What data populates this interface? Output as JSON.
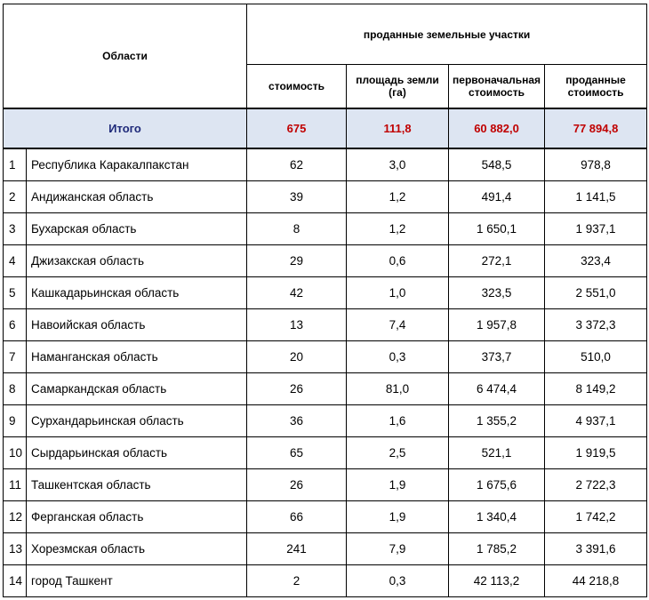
{
  "header": {
    "region_label": "Области",
    "group_label": "проданные земельные участки",
    "col_count": "стоимость",
    "col_area": "площадь земли (га)",
    "col_initial": "первоначальная стоимость",
    "col_sold": "проданные стоимость"
  },
  "total": {
    "label": "Итого",
    "count": "675",
    "area": "111,8",
    "initial": "60 882,0",
    "sold": "77 894,8"
  },
  "colors": {
    "total_bg": "#dde5f2",
    "total_label": "#1f2a7a",
    "total_values": "#c00000"
  },
  "rows": [
    {
      "n": "1",
      "region": "Республика Каракалпакстан",
      "count": "62",
      "area": "3,0",
      "initial": "548,5",
      "sold": "978,8"
    },
    {
      "n": "2",
      "region": "Андижанская область",
      "count": "39",
      "area": "1,2",
      "initial": "491,4",
      "sold": "1 141,5"
    },
    {
      "n": "3",
      "region": "Бухарская область",
      "count": "8",
      "area": "1,2",
      "initial": "1 650,1",
      "sold": "1 937,1"
    },
    {
      "n": "4",
      "region": "Джизакская область",
      "count": "29",
      "area": "0,6",
      "initial": "272,1",
      "sold": "323,4"
    },
    {
      "n": "5",
      "region": "Кашкадарьинская область",
      "count": "42",
      "area": "1,0",
      "initial": "323,5",
      "sold": "2 551,0"
    },
    {
      "n": "6",
      "region": "Навоийская область",
      "count": "13",
      "area": "7,4",
      "initial": "1 957,8",
      "sold": "3 372,3"
    },
    {
      "n": "7",
      "region": "Наманганская область",
      "count": "20",
      "area": "0,3",
      "initial": "373,7",
      "sold": "510,0"
    },
    {
      "n": "8",
      "region": "Самаркандская область",
      "count": "26",
      "area": "81,0",
      "initial": "6 474,4",
      "sold": "8 149,2"
    },
    {
      "n": "9",
      "region": "Сурхандарьинская область",
      "count": "36",
      "area": "1,6",
      "initial": "1 355,2",
      "sold": "4 937,1"
    },
    {
      "n": "10",
      "region": "Сырдарьинская область",
      "count": "65",
      "area": "2,5",
      "initial": "521,1",
      "sold": "1 919,5"
    },
    {
      "n": "11",
      "region": "Ташкентская область",
      "count": "26",
      "area": "1,9",
      "initial": "1 675,6",
      "sold": "2 722,3"
    },
    {
      "n": "12",
      "region": "Ферганская область",
      "count": "66",
      "area": "1,9",
      "initial": "1 340,4",
      "sold": "1 742,2"
    },
    {
      "n": "13",
      "region": "Хорезмская область",
      "count": "241",
      "area": "7,9",
      "initial": "1 785,2",
      "sold": "3 391,6"
    },
    {
      "n": "14",
      "region": "город Ташкент",
      "count": "2",
      "area": "0,3",
      "initial": "42 113,2",
      "sold": "44 218,8"
    }
  ]
}
